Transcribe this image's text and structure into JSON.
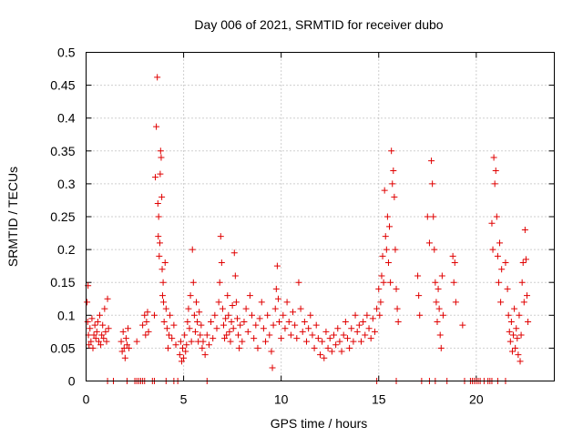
{
  "chart_data": {
    "type": "scatter",
    "title": "Day 006 of 2021, SRMTID for receiver dubo",
    "xlabel": "GPS time / hours",
    "ylabel": "SRMTID / TECUs",
    "xlim": [
      0,
      24
    ],
    "ylim": [
      0,
      0.5
    ],
    "xticks": [
      0,
      5,
      10,
      15,
      20
    ],
    "xtick_labels": [
      "0",
      "5",
      "10",
      "15",
      "20"
    ],
    "yticks": [
      0,
      0.05,
      0.1,
      0.15,
      0.2,
      0.25,
      0.3,
      0.35,
      0.4,
      0.45,
      0.5
    ],
    "ytick_labels": [
      "0",
      "0.05",
      "0.1",
      "0.15",
      "0.2",
      "0.25",
      "0.3",
      "0.35",
      "0.4",
      "0.45",
      "0.5"
    ],
    "grid": true,
    "marker": "+",
    "color": "#e00000",
    "series": [
      {
        "name": "SRMTID",
        "points": [
          [
            0.05,
            0.12
          ],
          [
            0.08,
            0.09
          ],
          [
            0.1,
            0.145
          ],
          [
            0.12,
            0.07
          ],
          [
            0.15,
            0.055
          ],
          [
            0.2,
            0.08
          ],
          [
            0.25,
            0.06
          ],
          [
            0.3,
            0.095
          ],
          [
            0.35,
            0.05
          ],
          [
            0.4,
            0.07
          ],
          [
            0.45,
            0.085
          ],
          [
            0.5,
            0.065
          ],
          [
            0.55,
            0.075
          ],
          [
            0.6,
            0.09
          ],
          [
            0.65,
            0.06
          ],
          [
            0.7,
            0.1
          ],
          [
            0.75,
            0.055
          ],
          [
            0.8,
            0.07
          ],
          [
            0.85,
            0.085
          ],
          [
            0.9,
            0.065
          ],
          [
            0.95,
            0.11
          ],
          [
            1.0,
            0.075
          ],
          [
            1.05,
            0.06
          ],
          [
            1.1,
            0.125
          ],
          [
            1.15,
            0.08
          ],
          [
            1.8,
            0.06
          ],
          [
            1.85,
            0.045
          ],
          [
            1.9,
            0.075
          ],
          [
            1.95,
            0.05
          ],
          [
            2.0,
            0.035
          ],
          [
            2.05,
            0.065
          ],
          [
            2.1,
            0.055
          ],
          [
            2.15,
            0.08
          ],
          [
            2.2,
            0.05
          ],
          [
            2.6,
            0.06
          ],
          [
            2.9,
            0.085
          ],
          [
            3.0,
            0.1
          ],
          [
            3.05,
            0.07
          ],
          [
            3.1,
            0.09
          ],
          [
            3.15,
            0.105
          ],
          [
            3.2,
            0.075
          ],
          [
            3.5,
            0.1
          ],
          [
            3.55,
            0.31
          ],
          [
            3.6,
            0.387
          ],
          [
            3.65,
            0.462
          ],
          [
            3.68,
            0.27
          ],
          [
            3.7,
            0.22
          ],
          [
            3.72,
            0.25
          ],
          [
            3.75,
            0.19
          ],
          [
            3.78,
            0.21
          ],
          [
            3.8,
            0.315
          ],
          [
            3.82,
            0.35
          ],
          [
            3.85,
            0.34
          ],
          [
            3.88,
            0.28
          ],
          [
            3.9,
            0.17
          ],
          [
            3.92,
            0.13
          ],
          [
            3.95,
            0.15
          ],
          [
            3.97,
            0.12
          ],
          [
            4.0,
            0.09
          ],
          [
            4.05,
            0.18
          ],
          [
            4.1,
            0.11
          ],
          [
            4.15,
            0.08
          ],
          [
            4.2,
            0.05
          ],
          [
            4.25,
            0.07
          ],
          [
            4.3,
            0.1
          ],
          [
            4.4,
            0.065
          ],
          [
            4.5,
            0.085
          ],
          [
            4.6,
            0.055
          ],
          [
            4.8,
            0.04
          ],
          [
            4.85,
            0.06
          ],
          [
            4.9,
            0.03
          ],
          [
            4.95,
            0.05
          ],
          [
            5.0,
            0.035
          ],
          [
            5.05,
            0.07
          ],
          [
            5.1,
            0.045
          ],
          [
            5.15,
            0.055
          ],
          [
            5.2,
            0.09
          ],
          [
            5.25,
            0.11
          ],
          [
            5.3,
            0.08
          ],
          [
            5.35,
            0.13
          ],
          [
            5.4,
            0.06
          ],
          [
            5.45,
            0.2
          ],
          [
            5.5,
            0.15
          ],
          [
            5.55,
            0.1
          ],
          [
            5.6,
            0.075
          ],
          [
            5.65,
            0.12
          ],
          [
            5.7,
            0.09
          ],
          [
            5.75,
            0.06
          ],
          [
            5.8,
            0.105
          ],
          [
            5.85,
            0.07
          ],
          [
            5.9,
            0.085
          ],
          [
            5.95,
            0.05
          ],
          [
            6.0,
            0.06
          ],
          [
            6.1,
            0.04
          ],
          [
            6.2,
            0.07
          ],
          [
            6.3,
            0.055
          ],
          [
            6.4,
            0.09
          ],
          [
            6.5,
            0.065
          ],
          [
            6.6,
            0.1
          ],
          [
            6.7,
            0.08
          ],
          [
            6.8,
            0.12
          ],
          [
            6.85,
            0.15
          ],
          [
            6.9,
            0.22
          ],
          [
            6.95,
            0.18
          ],
          [
            7.0,
            0.11
          ],
          [
            7.05,
            0.085
          ],
          [
            7.1,
            0.065
          ],
          [
            7.15,
            0.095
          ],
          [
            7.2,
            0.07
          ],
          [
            7.25,
            0.13
          ],
          [
            7.3,
            0.1
          ],
          [
            7.35,
            0.075
          ],
          [
            7.4,
            0.06
          ],
          [
            7.45,
            0.09
          ],
          [
            7.5,
            0.115
          ],
          [
            7.55,
            0.08
          ],
          [
            7.6,
            0.195
          ],
          [
            7.65,
            0.16
          ],
          [
            7.7,
            0.12
          ],
          [
            7.75,
            0.095
          ],
          [
            7.8,
            0.07
          ],
          [
            7.85,
            0.05
          ],
          [
            7.9,
            0.085
          ],
          [
            8.0,
            0.06
          ],
          [
            8.1,
            0.09
          ],
          [
            8.2,
            0.11
          ],
          [
            8.3,
            0.075
          ],
          [
            8.4,
            0.13
          ],
          [
            8.5,
            0.1
          ],
          [
            8.6,
            0.065
          ],
          [
            8.7,
            0.085
          ],
          [
            8.8,
            0.05
          ],
          [
            8.9,
            0.095
          ],
          [
            9.0,
            0.12
          ],
          [
            9.1,
            0.08
          ],
          [
            9.2,
            0.06
          ],
          [
            9.3,
            0.1
          ],
          [
            9.4,
            0.07
          ],
          [
            9.5,
            0.045
          ],
          [
            9.55,
            0.02
          ],
          [
            9.6,
            0.085
          ],
          [
            9.7,
            0.11
          ],
          [
            9.75,
            0.14
          ],
          [
            9.8,
            0.175
          ],
          [
            9.85,
            0.125
          ],
          [
            9.9,
            0.09
          ],
          [
            10.0,
            0.065
          ],
          [
            10.1,
            0.1
          ],
          [
            10.2,
            0.08
          ],
          [
            10.3,
            0.12
          ],
          [
            10.4,
            0.09
          ],
          [
            10.5,
            0.07
          ],
          [
            10.6,
            0.105
          ],
          [
            10.7,
            0.085
          ],
          [
            10.8,
            0.065
          ],
          [
            10.9,
            0.15
          ],
          [
            11.0,
            0.11
          ],
          [
            11.1,
            0.075
          ],
          [
            11.2,
            0.09
          ],
          [
            11.3,
            0.06
          ],
          [
            11.4,
            0.08
          ],
          [
            11.5,
            0.1
          ],
          [
            11.6,
            0.07
          ],
          [
            11.7,
            0.05
          ],
          [
            11.8,
            0.085
          ],
          [
            11.9,
            0.065
          ],
          [
            12.0,
            0.04
          ],
          [
            12.1,
            0.06
          ],
          [
            12.2,
            0.035
          ],
          [
            12.3,
            0.075
          ],
          [
            12.4,
            0.05
          ],
          [
            12.5,
            0.065
          ],
          [
            12.6,
            0.045
          ],
          [
            12.7,
            0.07
          ],
          [
            12.8,
            0.055
          ],
          [
            12.9,
            0.08
          ],
          [
            13.0,
            0.06
          ],
          [
            13.1,
            0.045
          ],
          [
            13.2,
            0.07
          ],
          [
            13.3,
            0.09
          ],
          [
            13.4,
            0.065
          ],
          [
            13.5,
            0.05
          ],
          [
            13.6,
            0.08
          ],
          [
            13.7,
            0.06
          ],
          [
            13.8,
            0.1
          ],
          [
            13.9,
            0.075
          ],
          [
            14.0,
            0.085
          ],
          [
            14.1,
            0.06
          ],
          [
            14.2,
            0.09
          ],
          [
            14.3,
            0.07
          ],
          [
            14.4,
            0.1
          ],
          [
            14.5,
            0.08
          ],
          [
            14.6,
            0.065
          ],
          [
            14.7,
            0.095
          ],
          [
            14.8,
            0.075
          ],
          [
            14.9,
            0.11
          ],
          [
            15.0,
            0.14
          ],
          [
            15.05,
            0.1
          ],
          [
            15.1,
            0.12
          ],
          [
            15.15,
            0.16
          ],
          [
            15.2,
            0.19
          ],
          [
            15.25,
            0.15
          ],
          [
            15.3,
            0.29
          ],
          [
            15.35,
            0.22
          ],
          [
            15.4,
            0.2
          ],
          [
            15.45,
            0.25
          ],
          [
            15.5,
            0.18
          ],
          [
            15.55,
            0.235
          ],
          [
            15.6,
            0.15
          ],
          [
            15.65,
            0.35
          ],
          [
            15.7,
            0.3
          ],
          [
            15.75,
            0.32
          ],
          [
            15.8,
            0.28
          ],
          [
            15.85,
            0.2
          ],
          [
            15.9,
            0.14
          ],
          [
            15.95,
            0.11
          ],
          [
            16.0,
            0.09
          ],
          [
            17.0,
            0.16
          ],
          [
            17.05,
            0.13
          ],
          [
            17.1,
            0.1
          ],
          [
            17.5,
            0.25
          ],
          [
            17.6,
            0.21
          ],
          [
            17.7,
            0.335
          ],
          [
            17.75,
            0.3
          ],
          [
            17.8,
            0.25
          ],
          [
            17.85,
            0.2
          ],
          [
            17.9,
            0.15
          ],
          [
            17.95,
            0.12
          ],
          [
            18.0,
            0.09
          ],
          [
            18.05,
            0.14
          ],
          [
            18.1,
            0.11
          ],
          [
            18.15,
            0.07
          ],
          [
            18.2,
            0.05
          ],
          [
            18.25,
            0.16
          ],
          [
            18.3,
            0.1
          ],
          [
            18.8,
            0.19
          ],
          [
            18.85,
            0.15
          ],
          [
            18.9,
            0.18
          ],
          [
            18.95,
            0.12
          ],
          [
            19.3,
            0.085
          ],
          [
            20.8,
            0.24
          ],
          [
            20.85,
            0.2
          ],
          [
            20.9,
            0.34
          ],
          [
            20.95,
            0.3
          ],
          [
            21.0,
            0.32
          ],
          [
            21.05,
            0.25
          ],
          [
            21.1,
            0.19
          ],
          [
            21.15,
            0.15
          ],
          [
            21.2,
            0.21
          ],
          [
            21.25,
            0.12
          ],
          [
            21.3,
            0.17
          ],
          [
            21.5,
            0.18
          ],
          [
            21.6,
            0.14
          ],
          [
            21.65,
            0.1
          ],
          [
            21.7,
            0.075
          ],
          [
            21.75,
            0.06
          ],
          [
            21.8,
            0.09
          ],
          [
            21.85,
            0.045
          ],
          [
            21.9,
            0.07
          ],
          [
            21.95,
            0.11
          ],
          [
            22.0,
            0.05
          ],
          [
            22.05,
            0.08
          ],
          [
            22.1,
            0.065
          ],
          [
            22.15,
            0.04
          ],
          [
            22.2,
            0.1
          ],
          [
            22.25,
            0.03
          ],
          [
            22.3,
            0.07
          ],
          [
            22.35,
            0.15
          ],
          [
            22.4,
            0.18
          ],
          [
            22.45,
            0.12
          ],
          [
            22.5,
            0.23
          ],
          [
            22.55,
            0.185
          ],
          [
            22.6,
            0.13
          ],
          [
            22.65,
            0.09
          ]
        ]
      },
      {
        "name": "zero",
        "points": [
          [
            1.1,
            0
          ],
          [
            1.4,
            0
          ],
          [
            2.1,
            0
          ],
          [
            2.5,
            0
          ],
          [
            2.6,
            0
          ],
          [
            2.7,
            0
          ],
          [
            2.8,
            0
          ],
          [
            2.9,
            0
          ],
          [
            3.0,
            0
          ],
          [
            3.4,
            0
          ],
          [
            3.5,
            0
          ],
          [
            4.1,
            0
          ],
          [
            4.5,
            0
          ],
          [
            4.7,
            0
          ],
          [
            6.2,
            0
          ],
          [
            14.9,
            0
          ],
          [
            15.9,
            0
          ],
          [
            17.2,
            0
          ],
          [
            17.6,
            0
          ],
          [
            17.9,
            0
          ],
          [
            18.5,
            0
          ],
          [
            19.4,
            0
          ],
          [
            19.7,
            0
          ],
          [
            19.8,
            0
          ],
          [
            19.9,
            0
          ],
          [
            20.0,
            0
          ],
          [
            20.1,
            0
          ],
          [
            20.2,
            0
          ],
          [
            20.4,
            0
          ],
          [
            20.6,
            0
          ],
          [
            20.7,
            0
          ],
          [
            20.8,
            0
          ],
          [
            21.1,
            0
          ],
          [
            21.5,
            0
          ]
        ]
      }
    ]
  }
}
